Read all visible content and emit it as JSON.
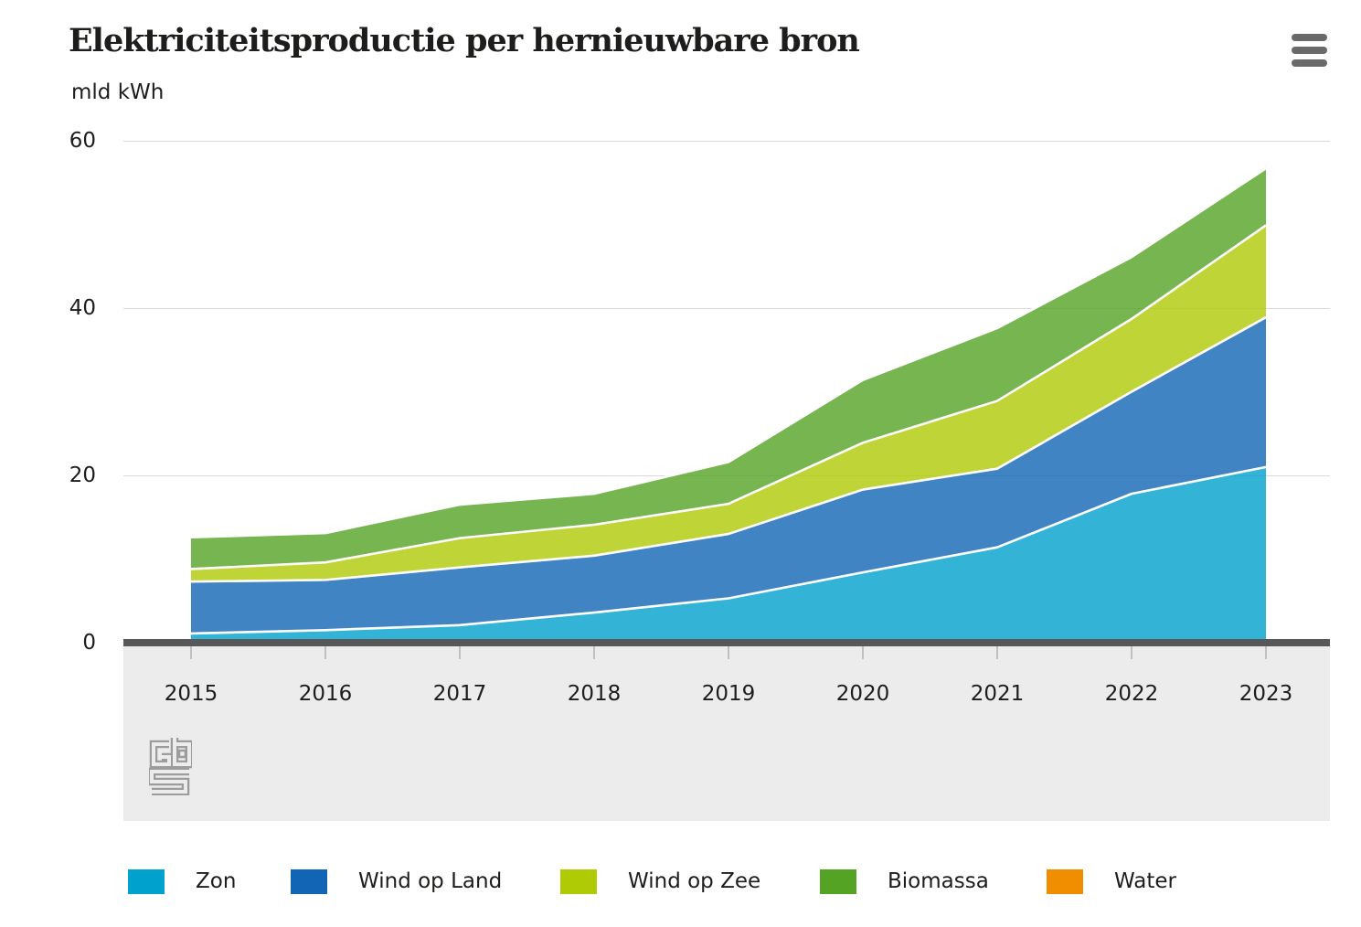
{
  "header": {
    "title": "Elektriciteitsproductie per hernieuwbare bron",
    "unit_label": "mld kWh",
    "menu_icon": "hamburger-menu-icon"
  },
  "footer": {
    "logo": "cbs-logo"
  },
  "chart_data": {
    "type": "area",
    "stacked": true,
    "title": "Elektriciteitsproductie per hernieuwbare bron",
    "ylabel": "mld kWh",
    "xlabel": "",
    "ylim": [
      0,
      60
    ],
    "yticks": [
      0,
      20,
      40,
      60
    ],
    "grid": true,
    "legend_position": "bottom",
    "x": [
      2015,
      2016,
      2017,
      2018,
      2019,
      2020,
      2021,
      2022,
      2023
    ],
    "series": [
      {
        "name": "Zon",
        "color": "#00a1cd",
        "values": [
          1.1,
          1.5,
          2.1,
          3.6,
          5.3,
          8.4,
          11.4,
          17.8,
          21.0
        ]
      },
      {
        "name": "Wind op Land",
        "color": "#1265b4",
        "values": [
          6.2,
          6.0,
          6.9,
          6.8,
          7.7,
          9.9,
          9.4,
          12.2,
          17.9
        ]
      },
      {
        "name": "Wind op Zee",
        "color": "#afcb05",
        "values": [
          1.5,
          2.1,
          3.5,
          3.7,
          3.6,
          5.6,
          8.1,
          8.7,
          11.0
        ]
      },
      {
        "name": "Biomassa",
        "color": "#55a325",
        "values": [
          3.8,
          3.5,
          4.0,
          3.7,
          5.0,
          7.5,
          8.7,
          7.4,
          6.8
        ]
      },
      {
        "name": "Water",
        "color": "#f08e00",
        "values": [
          0.1,
          0.1,
          0.1,
          0.1,
          0.1,
          0.1,
          0.1,
          0.1,
          0.1
        ]
      }
    ]
  }
}
